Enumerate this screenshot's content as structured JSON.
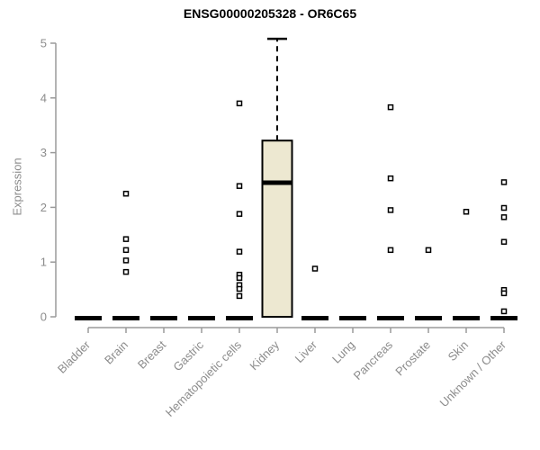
{
  "title": "ENSG00000205328 - OR6C65",
  "colors": {
    "background": "#ffffff",
    "title_text": "#000000",
    "axis_line": "#9a9a9a",
    "axis_label": "#8c8c8c",
    "box_fill": "#ede8d1",
    "box_stroke": "#000000",
    "median_stroke": "#000000",
    "outlier_stroke": "#000000",
    "outlier_fill": "#ffffff"
  },
  "chart_data": {
    "type": "boxplot",
    "title": "ENSG00000205328 - OR6C65",
    "xlabel": "",
    "ylabel": "Expression",
    "ylim": [
      0,
      5
    ],
    "yticks": [
      0,
      1,
      2,
      3,
      4,
      5
    ],
    "grid": false,
    "legend": "none",
    "categories": [
      "Bladder",
      "Brain",
      "Breast",
      "Gastric",
      "Hematopoietic cells",
      "Kidney",
      "Liver",
      "Lung",
      "Pancreas",
      "Prostate",
      "Skin",
      "Unknown / Other"
    ],
    "series": [
      {
        "category": "Bladder",
        "box": {
          "min": 0,
          "q1": 0,
          "median": 0,
          "q3": 0,
          "max": 0
        },
        "outliers": []
      },
      {
        "category": "Brain",
        "box": {
          "min": 0,
          "q1": 0,
          "median": 0,
          "q3": 0,
          "max": 0
        },
        "outliers": [
          2.25,
          1.42,
          1.22,
          1.03,
          0.82
        ]
      },
      {
        "category": "Breast",
        "box": {
          "min": 0,
          "q1": 0,
          "median": 0,
          "q3": 0,
          "max": 0
        },
        "outliers": []
      },
      {
        "category": "Gastric",
        "box": {
          "min": 0,
          "q1": 0,
          "median": 0,
          "q3": 0,
          "max": 0
        },
        "outliers": []
      },
      {
        "category": "Hematopoietic cells",
        "box": {
          "min": 0,
          "q1": 0,
          "median": 0,
          "q3": 0,
          "max": 0
        },
        "outliers": [
          3.9,
          2.39,
          1.88,
          1.19,
          0.77,
          0.71,
          0.58,
          0.51,
          0.38
        ]
      },
      {
        "category": "Kidney",
        "box": {
          "min": 0,
          "q1": 0,
          "median": 2.45,
          "q3": 3.22,
          "max": 5.08
        },
        "outliers": []
      },
      {
        "category": "Liver",
        "box": {
          "min": 0,
          "q1": 0,
          "median": 0,
          "q3": 0,
          "max": 0
        },
        "outliers": [
          0.88
        ]
      },
      {
        "category": "Lung",
        "box": {
          "min": 0,
          "q1": 0,
          "median": 0,
          "q3": 0,
          "max": 0
        },
        "outliers": []
      },
      {
        "category": "Pancreas",
        "box": {
          "min": 0,
          "q1": 0,
          "median": 0,
          "q3": 0,
          "max": 0
        },
        "outliers": [
          3.83,
          2.53,
          1.95,
          1.22
        ]
      },
      {
        "category": "Prostate",
        "box": {
          "min": 0,
          "q1": 0,
          "median": 0,
          "q3": 0,
          "max": 0
        },
        "outliers": [
          1.22
        ]
      },
      {
        "category": "Skin",
        "box": {
          "min": 0,
          "q1": 0,
          "median": 0,
          "q3": 0,
          "max": 0
        },
        "outliers": [
          1.92
        ]
      },
      {
        "category": "Unknown / Other",
        "box": {
          "min": 0,
          "q1": 0,
          "median": 0,
          "q3": 0,
          "max": 0
        },
        "outliers": [
          2.46,
          1.99,
          1.82,
          1.37,
          0.49,
          0.43,
          0.1
        ]
      }
    ]
  }
}
